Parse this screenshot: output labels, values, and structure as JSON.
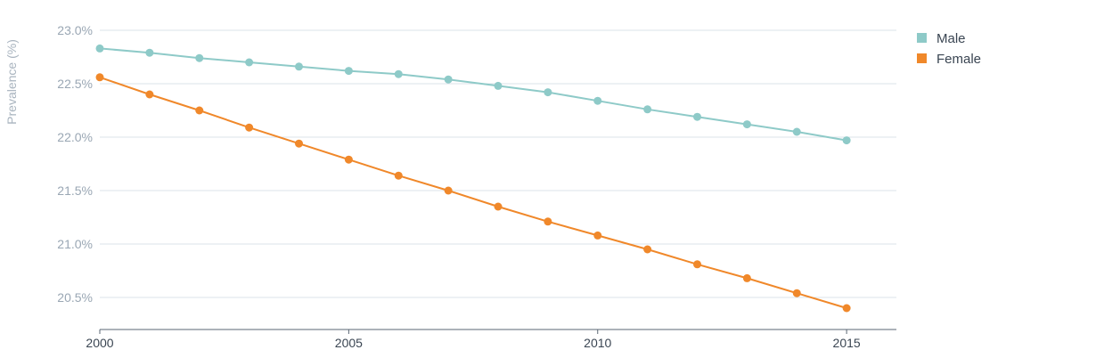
{
  "chart_data": {
    "type": "line",
    "ylabel": "Prevalence (%)",
    "xlabel": "",
    "title": "",
    "x": [
      2000,
      2001,
      2002,
      2003,
      2004,
      2005,
      2006,
      2007,
      2008,
      2009,
      2010,
      2011,
      2012,
      2013,
      2014,
      2015
    ],
    "xlim": [
      2000,
      2016
    ],
    "xticks": [
      "2000",
      "2005",
      "2010",
      "2015"
    ],
    "ylim": [
      20.2,
      23.0
    ],
    "yticks": [
      "23.0%",
      "22.5%",
      "22.0%",
      "21.5%",
      "21.0%",
      "20.5%"
    ],
    "grid": true,
    "legend_position": "top-right",
    "series": [
      {
        "name": "Male",
        "color": "#8ecac8",
        "values": [
          22.83,
          22.79,
          22.74,
          22.7,
          22.66,
          22.62,
          22.59,
          22.54,
          22.48,
          22.42,
          22.34,
          22.26,
          22.19,
          22.12,
          22.05,
          21.97
        ]
      },
      {
        "name": "Female",
        "color": "#f0882a",
        "values": [
          22.56,
          22.4,
          22.25,
          22.09,
          21.94,
          21.79,
          21.64,
          21.5,
          21.35,
          21.21,
          21.08,
          20.95,
          20.81,
          20.68,
          20.54,
          20.4
        ]
      }
    ]
  }
}
